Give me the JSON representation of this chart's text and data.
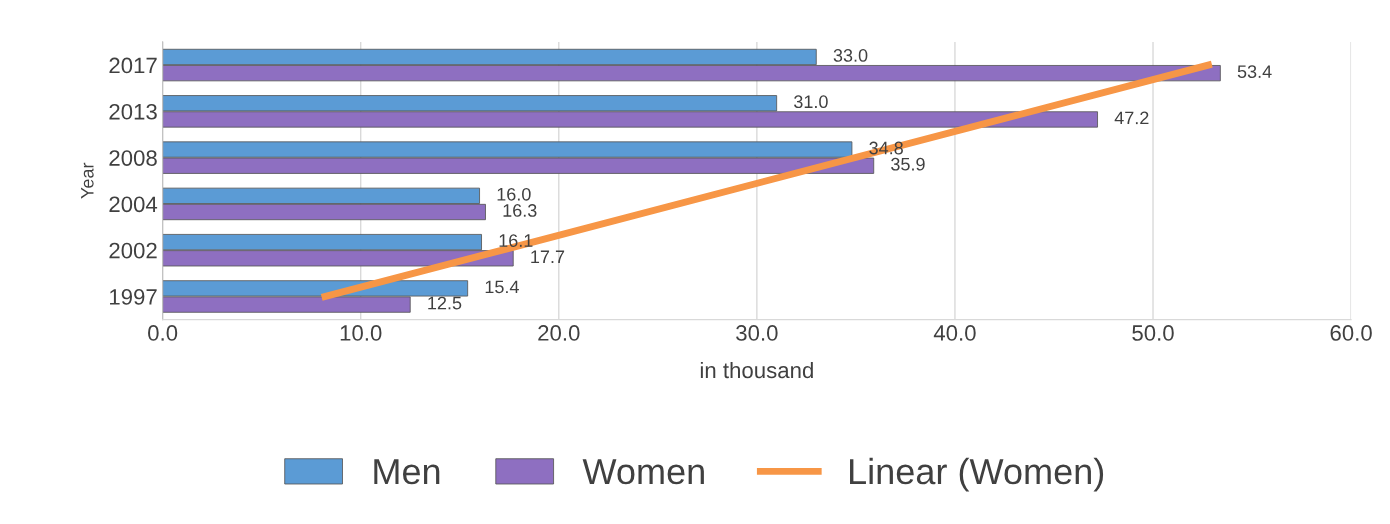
{
  "chart_data": {
    "type": "bar",
    "orientation": "horizontal",
    "xlabel": "in thousand",
    "ylabel": "Year",
    "categories": [
      "2017",
      "2013",
      "2008",
      "2004",
      "2002",
      "1997"
    ],
    "series": [
      {
        "name": "Men",
        "color": "#5b9bd5",
        "values": [
          33.0,
          31.0,
          34.8,
          16.0,
          16.1,
          15.4
        ],
        "value_labels": [
          "33.0",
          "31.0",
          "34.8",
          "16.0",
          "16.1",
          "15.4"
        ]
      },
      {
        "name": "Women",
        "color": "#8e6fc1",
        "values": [
          53.4,
          47.2,
          35.9,
          16.3,
          17.7,
          12.5
        ],
        "value_labels": [
          "53.4",
          "47.2",
          "35.9",
          "16.3",
          "17.7",
          "12.5"
        ]
      },
      {
        "name": "Linear (Women)",
        "type": "line",
        "color": "#f79646",
        "values": [
          52.8,
          null,
          null,
          null,
          null,
          8.2
        ]
      }
    ],
    "xlim": [
      0,
      60
    ],
    "xticks": [
      {
        "value": 0,
        "label": "0.0"
      },
      {
        "value": 10,
        "label": "10.0"
      },
      {
        "value": 20,
        "label": "20.0"
      },
      {
        "value": 30,
        "label": "30.0"
      },
      {
        "value": 40,
        "label": "40.0"
      },
      {
        "value": 50,
        "label": "50.0"
      },
      {
        "value": 60,
        "label": "60.0"
      }
    ],
    "grid": "x",
    "legend": "bottom"
  }
}
